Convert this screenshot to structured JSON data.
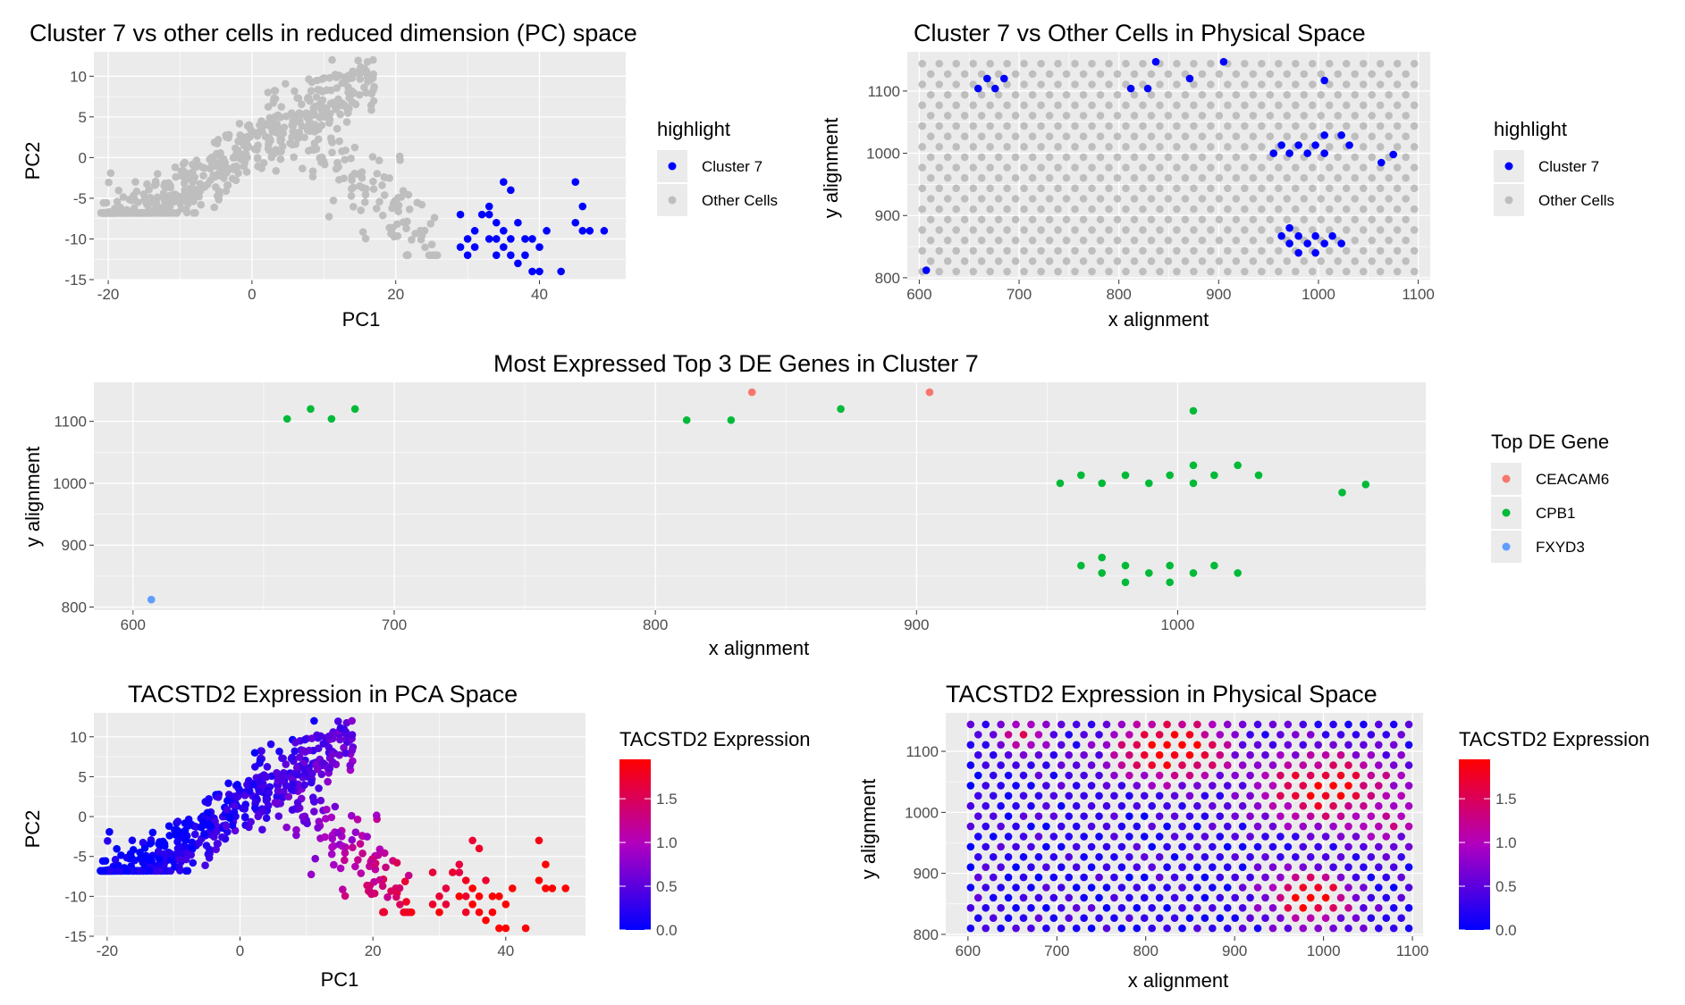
{
  "colors": {
    "panel_bg": "#ebebeb",
    "grid": "#ffffff",
    "cluster": "#0000ff",
    "other": "#bebebe",
    "ceacam6": "#f8766d",
    "cpb1": "#00ba38",
    "fxyd3": "#619cff",
    "expr_low": "#0000ff",
    "expr_high": "#ff0000"
  },
  "chart_data": [
    {
      "id": "p1",
      "type": "scatter",
      "title": "Cluster 7 vs other cells in reduced dimension (PC) space",
      "xlabel": "PC1",
      "ylabel": "PC2",
      "xlim": [
        -22,
        52
      ],
      "ylim": [
        -15,
        13
      ],
      "xticks": [
        -20,
        0,
        20,
        40
      ],
      "yticks": [
        -15,
        -10,
        -5,
        0,
        5,
        10
      ],
      "legend": {
        "title": "highlight",
        "entries": [
          {
            "label": "Cluster 7",
            "color": "#0000ff"
          },
          {
            "label": "Other Cells",
            "color": "#bebebe"
          }
        ]
      },
      "series": [
        {
          "name": "Other Cells",
          "color": "#bebebe",
          "generator": "pca",
          "seed": 11
        },
        {
          "name": "Cluster 7",
          "color": "#0000ff",
          "points": [
            [
              29,
              -7
            ],
            [
              29,
              -11
            ],
            [
              30,
              -10
            ],
            [
              30,
              -12
            ],
            [
              31,
              -9
            ],
            [
              32,
              -7
            ],
            [
              33,
              -6
            ],
            [
              33,
              -10
            ],
            [
              34,
              -8
            ],
            [
              34,
              -12
            ],
            [
              35,
              -3
            ],
            [
              35,
              -9
            ],
            [
              35,
              -11
            ],
            [
              36,
              -4
            ],
            [
              36,
              -12
            ],
            [
              37,
              -8
            ],
            [
              37,
              -13
            ],
            [
              38,
              -10
            ],
            [
              38,
              -12
            ],
            [
              39,
              -14
            ],
            [
              40,
              -11
            ],
            [
              40,
              -14
            ],
            [
              41,
              -9
            ],
            [
              43,
              -14
            ],
            [
              45,
              -3
            ],
            [
              45,
              -8
            ],
            [
              46,
              -6
            ],
            [
              46,
              -9
            ],
            [
              47,
              -9
            ],
            [
              49,
              -9
            ],
            [
              31,
              -11
            ],
            [
              33,
              -7
            ],
            [
              36,
              -10
            ],
            [
              39,
              -10
            ],
            [
              34,
              -10
            ]
          ]
        }
      ]
    },
    {
      "id": "p2",
      "type": "scatter",
      "title": "Cluster 7 vs Other Cells in Physical Space",
      "xlabel": "x alignment",
      "ylabel": "y alignment",
      "xlim": [
        588,
        1112
      ],
      "ylim": [
        797,
        1163
      ],
      "xticks": [
        600,
        700,
        800,
        900,
        1000,
        1100
      ],
      "yticks": [
        800,
        900,
        1000,
        1100
      ],
      "legend": {
        "title": "highlight",
        "entries": [
          {
            "label": "Cluster 7",
            "color": "#0000ff"
          },
          {
            "label": "Other Cells",
            "color": "#bebebe"
          }
        ]
      },
      "series": [
        {
          "name": "Other Cells",
          "color": "#bebebe",
          "generator": "grid"
        },
        {
          "name": "Cluster 7",
          "color": "#0000ff",
          "points": [
            [
              607,
              812
            ],
            [
              659,
              1104
            ],
            [
              668,
              1120
            ],
            [
              676,
              1104
            ],
            [
              685,
              1120
            ],
            [
              812,
              1104
            ],
            [
              829,
              1104
            ],
            [
              837,
              1147
            ],
            [
              871,
              1120
            ],
            [
              905,
              1147
            ],
            [
              955,
              1000
            ],
            [
              963,
              1013
            ],
            [
              971,
              1000
            ],
            [
              980,
              1013
            ],
            [
              989,
              1000
            ],
            [
              997,
              1013
            ],
            [
              1006,
              1000
            ],
            [
              1006,
              1029
            ],
            [
              1006,
              1117
            ],
            [
              1023,
              1029
            ],
            [
              1031,
              1013
            ],
            [
              1063,
              985
            ],
            [
              1075,
              998
            ],
            [
              963,
              867
            ],
            [
              971,
              880
            ],
            [
              971,
              855
            ],
            [
              980,
              867
            ],
            [
              980,
              840
            ],
            [
              989,
              855
            ],
            [
              997,
              867
            ],
            [
              997,
              840
            ],
            [
              1006,
              855
            ],
            [
              1014,
              867
            ],
            [
              1023,
              855
            ]
          ]
        }
      ]
    },
    {
      "id": "p3",
      "type": "scatter",
      "title": "Most Expressed Top 3 DE Genes in Cluster 7",
      "xlabel": "x alignment",
      "ylabel": "y alignment",
      "xlim": [
        585,
        1095
      ],
      "ylim": [
        795,
        1163
      ],
      "xticks": [
        600,
        700,
        800,
        900,
        1000
      ],
      "yticks": [
        800,
        900,
        1000,
        1100
      ],
      "legend": {
        "title": "Top DE Gene",
        "entries": [
          {
            "label": "CEACAM6",
            "color": "#f8766d"
          },
          {
            "label": "CPB1",
            "color": "#00ba38"
          },
          {
            "label": "FXYD3",
            "color": "#619cff"
          }
        ]
      },
      "series": [
        {
          "name": "CEACAM6",
          "color": "#f8766d",
          "points": [
            [
              837,
              1147
            ],
            [
              905,
              1147
            ]
          ]
        },
        {
          "name": "CPB1",
          "color": "#00ba38",
          "points": [
            [
              659,
              1104
            ],
            [
              668,
              1120
            ],
            [
              676,
              1104
            ],
            [
              685,
              1120
            ],
            [
              812,
              1102
            ],
            [
              829,
              1102
            ],
            [
              871,
              1120
            ],
            [
              1006,
              1117
            ],
            [
              955,
              1000
            ],
            [
              963,
              1013
            ],
            [
              971,
              1000
            ],
            [
              980,
              1013
            ],
            [
              989,
              1000
            ],
            [
              997,
              1013
            ],
            [
              1006,
              1000
            ],
            [
              1006,
              1029
            ],
            [
              1014,
              1013
            ],
            [
              1023,
              1029
            ],
            [
              1031,
              1013
            ],
            [
              1063,
              985
            ],
            [
              1072,
              998
            ],
            [
              963,
              867
            ],
            [
              971,
              880
            ],
            [
              971,
              855
            ],
            [
              980,
              867
            ],
            [
              980,
              840
            ],
            [
              989,
              855
            ],
            [
              997,
              867
            ],
            [
              997,
              840
            ],
            [
              1006,
              855
            ],
            [
              1014,
              867
            ],
            [
              1023,
              855
            ]
          ]
        },
        {
          "name": "FXYD3",
          "color": "#619cff",
          "points": [
            [
              607,
              812
            ]
          ]
        }
      ]
    },
    {
      "id": "p4",
      "type": "scatter",
      "title": "TACSTD2 Expression in PCA Space",
      "xlabel": "PC1",
      "ylabel": "PC2",
      "xlim": [
        -22,
        52
      ],
      "ylim": [
        -15,
        13
      ],
      "xticks": [
        -20,
        0,
        20,
        40
      ],
      "yticks": [
        -15,
        -10,
        -5,
        0,
        5,
        10
      ],
      "colorbar": {
        "title": "TACSTD2 Expression",
        "min": 0,
        "max": 1.95,
        "ticks": [
          0.0,
          0.5,
          1.0,
          1.5
        ],
        "tick_labels": [
          "0.0",
          "0.5",
          "1.0",
          "1.5"
        ]
      },
      "series": [
        {
          "name": "",
          "generator": "pca_expr",
          "seed": 11
        }
      ]
    },
    {
      "id": "p5",
      "type": "scatter",
      "title": "TACSTD2 Expression in Physical Space",
      "xlabel": "x alignment",
      "ylabel": "y alignment",
      "xlim": [
        575,
        1112
      ],
      "ylim": [
        797,
        1163
      ],
      "xticks": [
        600,
        700,
        800,
        900,
        1000,
        1100
      ],
      "yticks": [
        800,
        900,
        1000,
        1100
      ],
      "colorbar": {
        "title": "TACSTD2 Expression",
        "min": 0,
        "max": 1.95,
        "ticks": [
          0.0,
          0.5,
          1.0,
          1.5
        ],
        "tick_labels": [
          "0.0",
          "0.5",
          "1.0",
          "1.5"
        ]
      },
      "series": [
        {
          "name": "",
          "generator": "grid_expr"
        }
      ]
    }
  ]
}
